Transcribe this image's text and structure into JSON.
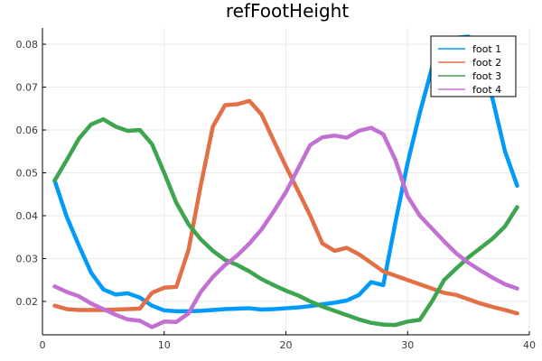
{
  "chart_data": {
    "type": "line",
    "title": "refFootHeight",
    "xlabel": "",
    "ylabel": "",
    "xlim": [
      0,
      40
    ],
    "ylim": [
      0.0122,
      0.0838
    ],
    "x_ticks": [
      0,
      10,
      20,
      30,
      40
    ],
    "y_ticks": [
      0.02,
      0.03,
      0.04,
      0.05,
      0.06,
      0.07,
      0.08
    ],
    "x_tick_labels": [
      "0",
      "10",
      "20",
      "30",
      "40"
    ],
    "y_tick_labels": [
      "0.02",
      "0.03",
      "0.04",
      "0.05",
      "0.06",
      "0.07",
      "0.08"
    ],
    "grid": true,
    "legend_position": "top-right",
    "x": [
      1,
      2,
      3,
      4,
      5,
      6,
      7,
      8,
      9,
      10,
      11,
      12,
      13,
      14,
      15,
      16,
      17,
      18,
      19,
      20,
      21,
      22,
      23,
      24,
      25,
      26,
      27,
      28,
      29,
      30,
      31,
      32,
      33,
      34,
      35,
      36,
      37,
      38,
      39
    ],
    "series": [
      {
        "name": "foot 1",
        "color": "#009AFA",
        "values": [
          0.0482,
          0.0397,
          0.033,
          0.0267,
          0.0228,
          0.0216,
          0.0219,
          0.0209,
          0.019,
          0.0179,
          0.0177,
          0.0177,
          0.0178,
          0.018,
          0.0182,
          0.0183,
          0.0184,
          0.0181,
          0.0182,
          0.0184,
          0.0186,
          0.0189,
          0.0193,
          0.0197,
          0.0202,
          0.0215,
          0.0245,
          0.0238,
          0.0385,
          0.0523,
          0.064,
          0.0745,
          0.0808,
          0.0815,
          0.0818,
          0.077,
          0.067,
          0.055,
          0.047
        ]
      },
      {
        "name": "foot 2",
        "color": "#E36F47",
        "values": [
          0.019,
          0.0182,
          0.018,
          0.018,
          0.018,
          0.0181,
          0.0182,
          0.0183,
          0.022,
          0.0232,
          0.0234,
          0.032,
          0.047,
          0.0608,
          0.0658,
          0.066,
          0.0668,
          0.0636,
          0.0575,
          0.0515,
          0.0458,
          0.04,
          0.0335,
          0.0318,
          0.0325,
          0.031,
          0.029,
          0.027,
          0.026,
          0.025,
          0.024,
          0.023,
          0.022,
          0.0215,
          0.0205,
          0.0195,
          0.0187,
          0.018,
          0.0172
        ]
      },
      {
        "name": "foot 3",
        "color": "#3EA44E",
        "values": [
          0.0482,
          0.053,
          0.058,
          0.0613,
          0.0625,
          0.0608,
          0.0598,
          0.06,
          0.0567,
          0.05,
          0.043,
          0.038,
          0.0345,
          0.0318,
          0.0297,
          0.0285,
          0.027,
          0.0252,
          0.0238,
          0.0225,
          0.0214,
          0.02,
          0.0188,
          0.0178,
          0.0168,
          0.0158,
          0.015,
          0.0146,
          0.0145,
          0.0153,
          0.0157,
          0.02,
          0.025,
          0.0277,
          0.0303,
          0.0325,
          0.0347,
          0.0375,
          0.042
        ]
      },
      {
        "name": "foot 4",
        "color": "#C271D2",
        "values": [
          0.0235,
          0.0222,
          0.0212,
          0.0195,
          0.0182,
          0.0169,
          0.0158,
          0.0155,
          0.014,
          0.0153,
          0.0152,
          0.0172,
          0.0222,
          0.0257,
          0.0285,
          0.0307,
          0.0335,
          0.0368,
          0.041,
          0.0455,
          0.051,
          0.0565,
          0.0583,
          0.0587,
          0.0582,
          0.0598,
          0.0605,
          0.059,
          0.053,
          0.0445,
          0.04,
          0.037,
          0.034,
          0.0312,
          0.029,
          0.0272,
          0.0255,
          0.024,
          0.023
        ]
      }
    ]
  }
}
